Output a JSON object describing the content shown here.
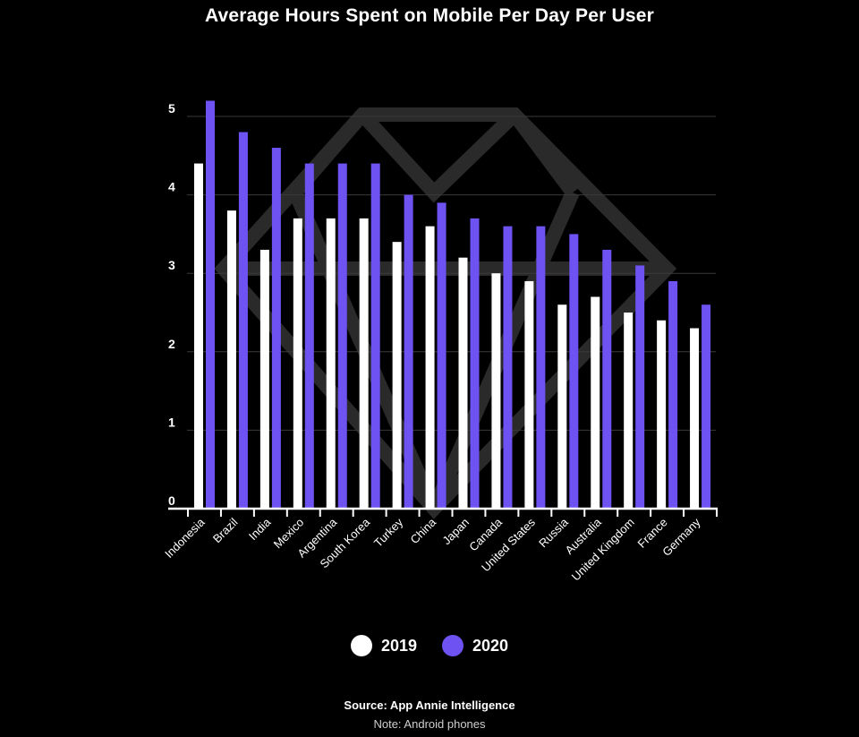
{
  "chart_data": {
    "type": "bar",
    "title": "Average Hours Spent on Mobile Per Day Per User",
    "xlabel": "",
    "ylabel": "",
    "ylim": [
      0,
      5.3
    ],
    "yticks": [
      0,
      1,
      2,
      3,
      4,
      5
    ],
    "grid": true,
    "legend_position": "bottom-center",
    "categories": [
      "Indonesia",
      "Brazil",
      "India",
      "Mexico",
      "Argentina",
      "South Korea",
      "Turkey",
      "China",
      "Japan",
      "Canada",
      "United States",
      "Russia",
      "Australia",
      "United Kingdom",
      "France",
      "Germany"
    ],
    "series": [
      {
        "name": "2019",
        "color": "#ffffff",
        "values": [
          4.4,
          3.8,
          3.3,
          3.7,
          3.7,
          3.7,
          3.4,
          3.6,
          3.2,
          3.0,
          2.9,
          2.6,
          2.7,
          2.5,
          2.4,
          2.3
        ]
      },
      {
        "name": "2020",
        "color": "#6e52f2",
        "values": [
          5.2,
          4.8,
          4.6,
          4.4,
          4.4,
          4.4,
          4.0,
          3.9,
          3.7,
          3.6,
          3.6,
          3.5,
          3.3,
          3.1,
          2.9,
          2.6
        ]
      }
    ]
  },
  "source": "Source: App Annie Intelligence",
  "note": "Note: Android phones",
  "colors": {
    "background": "#000000",
    "gridline": "#3a3a3a",
    "watermark": "#2a2a2a"
  }
}
